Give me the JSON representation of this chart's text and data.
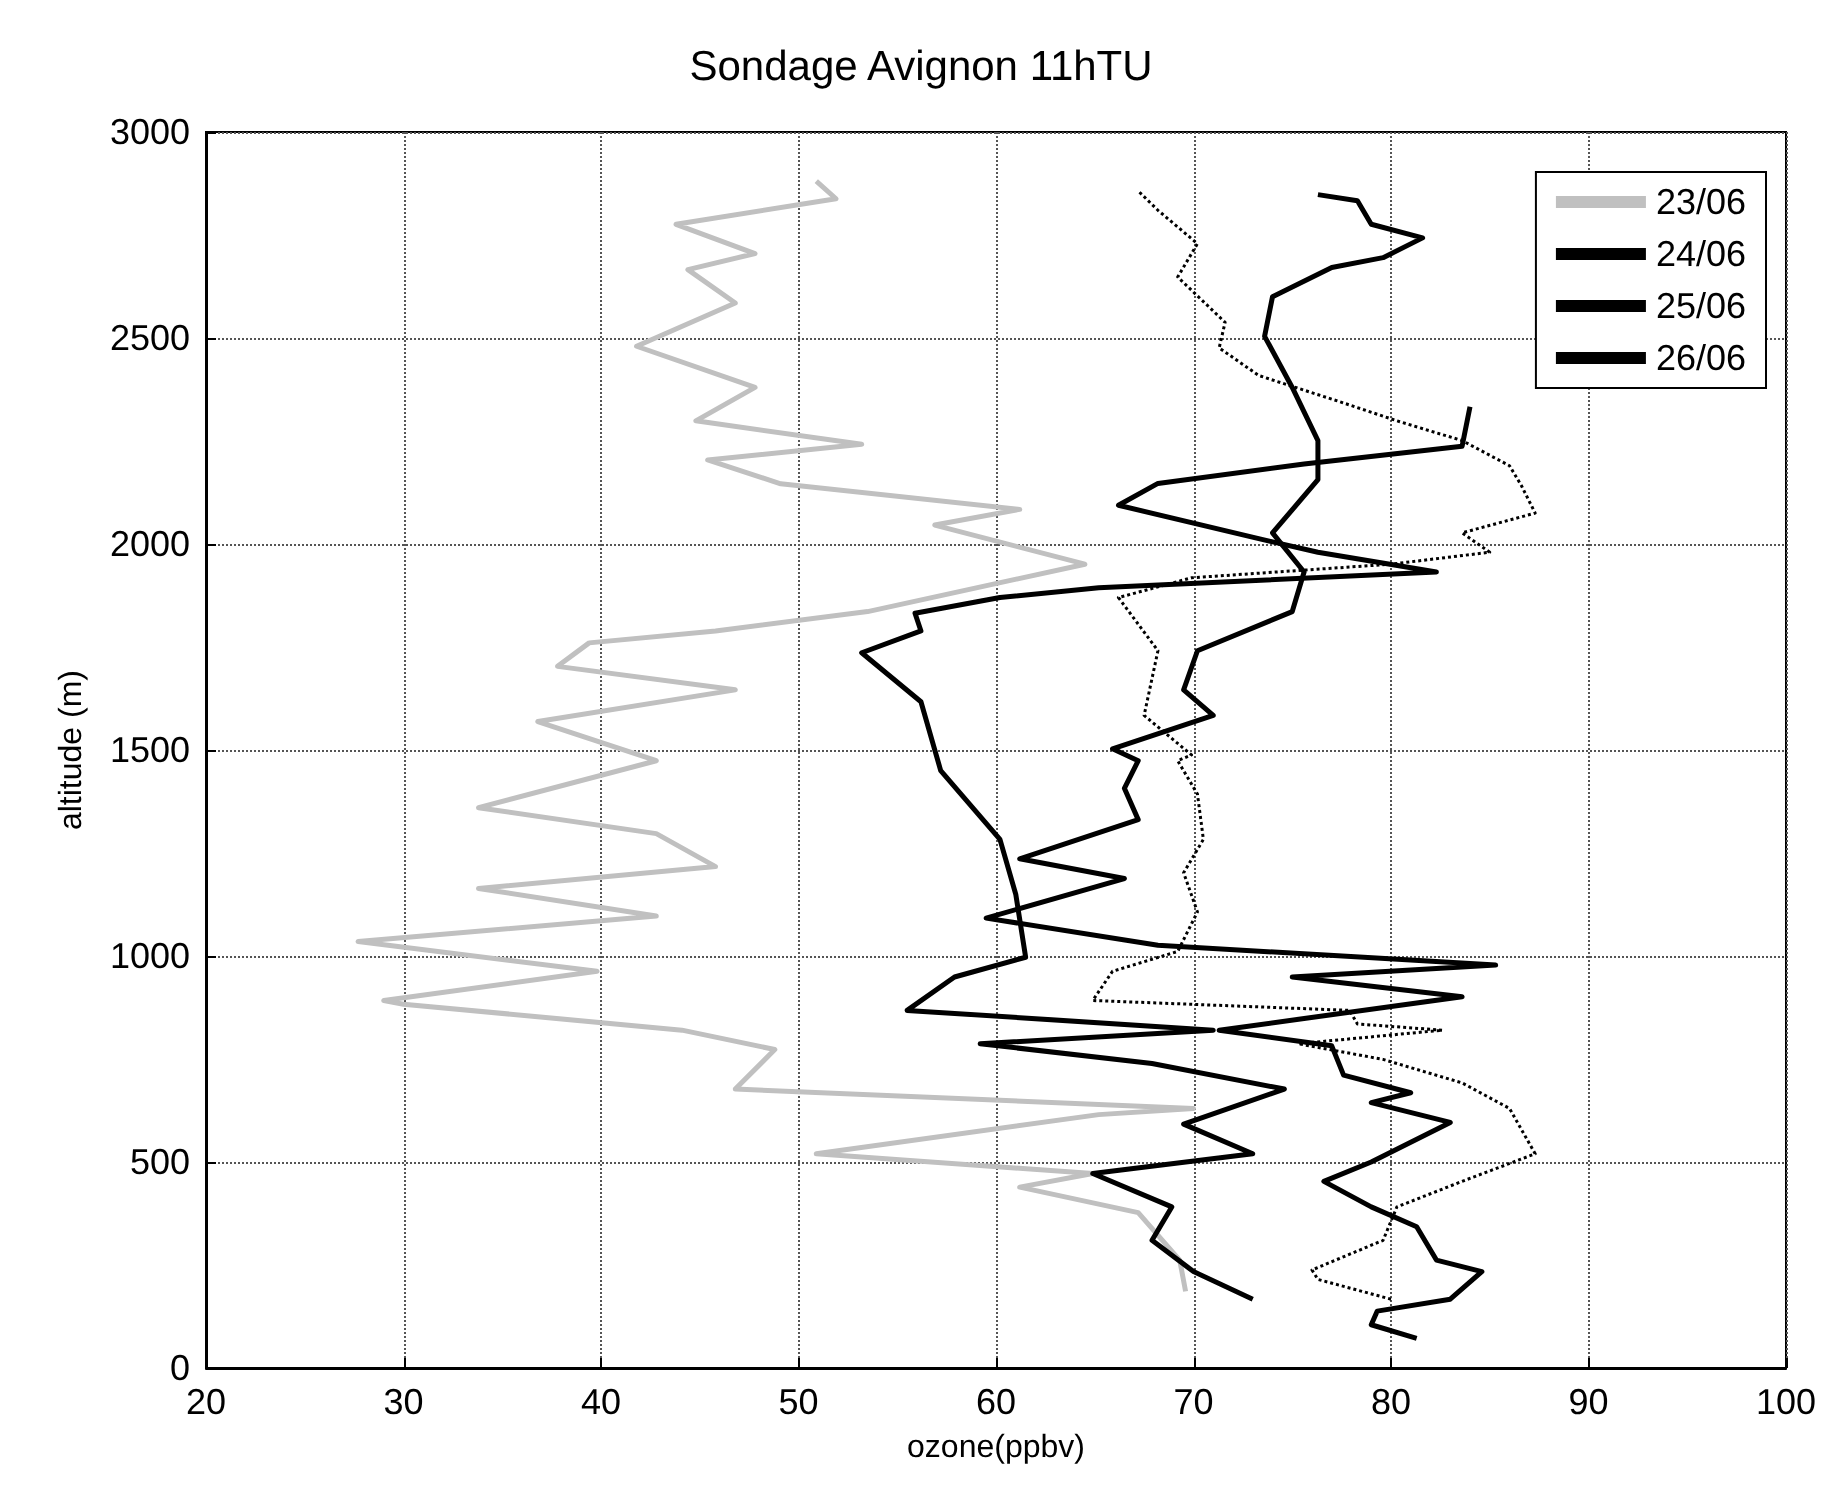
{
  "chart_data": {
    "type": "line",
    "title": "Sondage Avignon 11hTU",
    "xlabel": "ozone(ppbv)",
    "ylabel": "altitude (m)",
    "xlim": [
      20,
      100
    ],
    "xticks": [
      20,
      30,
      40,
      50,
      60,
      70,
      80,
      90,
      100
    ],
    "ylim": [
      0,
      3000
    ],
    "yticks": [
      0,
      500,
      1000,
      1500,
      2000,
      2500,
      3000
    ],
    "grid": true,
    "legend": "top right",
    "marker": "none",
    "series": [
      {
        "name": "23/06",
        "color": "#c0c0c0",
        "line_style": "solid",
        "x": [
          69.6,
          69.3,
          67.2,
          61.2,
          64.9,
          50.9,
          65.2,
          70,
          46.8,
          48.8,
          44.1,
          30,
          29,
          39.8,
          27.7,
          42.8,
          33.8,
          45.8,
          42.8,
          33.8,
          42.8,
          36.8,
          46.8,
          37.8,
          39.4,
          45.8,
          53.5,
          64.5,
          56.9,
          61.2,
          49.1,
          45.4,
          53.2,
          44.8,
          47.8,
          41.8,
          46.8,
          44.4,
          47.8,
          43.8,
          51.9,
          50.9
        ],
        "values": [
          186,
          262,
          377,
          439,
          472,
          520,
          615,
          630,
          677,
          773,
          820,
          883,
          892,
          963,
          1035,
          1097,
          1164,
          1217,
          1297,
          1360,
          1474,
          1569,
          1646,
          1703,
          1760,
          1789,
          1836,
          1951,
          2046,
          2084,
          2146,
          2204,
          2242,
          2299,
          2380,
          2480,
          2585,
          2666,
          2705,
          2776,
          2838,
          2881
        ]
      },
      {
        "name": "24/06",
        "color": "#000000",
        "line_style": "solid",
        "x": [
          73,
          70,
          67.9,
          68.9,
          64.9,
          73,
          69.5,
          74.6,
          67.9,
          59.2,
          71,
          55.5,
          57.9,
          61.5,
          61,
          60.2,
          57.2,
          56.2,
          53.2,
          56.2,
          55.9,
          60.2,
          65.2,
          82.3,
          76.3,
          73.3,
          66.2,
          68.2,
          75.6,
          83.6,
          84
        ],
        "values": [
          167,
          234,
          310,
          391,
          472,
          520,
          592,
          677,
          739,
          787,
          820,
          868,
          949,
          997,
          1150,
          1283,
          1450,
          1617,
          1736,
          1789,
          1832,
          1870,
          1894,
          1932,
          1980,
          2013,
          2094,
          2147,
          2194,
          2237,
          2333
        ]
      },
      {
        "name": "25/06",
        "color": "#000000",
        "line_style": "dotted",
        "x": [
          80,
          76.3,
          76,
          79.6,
          80.3,
          83.6,
          87.3,
          86,
          83.6,
          79.6,
          75.3,
          82.6,
          78.3,
          77.9,
          64.9,
          65.9,
          69.2,
          70.2,
          69.5,
          70.5,
          70.2,
          69.2,
          69.9,
          67.5,
          68.2,
          66.2,
          69.9,
          80,
          85,
          83.6,
          87.3,
          86.6,
          86,
          83.6,
          80.3,
          77.3,
          73.3,
          71.3,
          71.6,
          69.2,
          70.2,
          68.2,
          67.2
        ],
        "values": [
          167,
          215,
          238,
          310,
          391,
          453,
          520,
          630,
          692,
          749,
          787,
          820,
          835,
          868,
          892,
          963,
          1011,
          1107,
          1202,
          1283,
          1393,
          1474,
          1488,
          1584,
          1741,
          1870,
          1918,
          1951,
          1980,
          2027,
          2075,
          2142,
          2190,
          2251,
          2299,
          2347,
          2409,
          2476,
          2538,
          2648,
          2729,
          2810,
          2857
        ]
      },
      {
        "name": "26/06",
        "color": "#000000",
        "line_style": "solid",
        "x": [
          81.3,
          79,
          79.3,
          83,
          84.6,
          82.3,
          81.3,
          79,
          76.6,
          79,
          83,
          79,
          81,
          77.6,
          77,
          71.3,
          83.6,
          75,
          85.3,
          68.2,
          59.5,
          66.5,
          61.2,
          67.2,
          66.5,
          67.2,
          65.9,
          71,
          69.5,
          70.2,
          75,
          75.6,
          74,
          76.3,
          76.3,
          75,
          73.6,
          74,
          77,
          79.6,
          81.6,
          79,
          78.3,
          76.3
        ],
        "values": [
          72,
          105,
          138,
          167,
          234,
          262,
          343,
          391,
          453,
          500,
          596,
          644,
          668,
          711,
          782,
          820,
          901,
          949,
          978,
          1026,
          1092,
          1188,
          1236,
          1331,
          1407,
          1474,
          1503,
          1584,
          1646,
          1741,
          1836,
          1932,
          2027,
          2156,
          2251,
          2380,
          2504,
          2600,
          2671,
          2695,
          2743,
          2776,
          2833,
          2848
        ]
      }
    ]
  }
}
